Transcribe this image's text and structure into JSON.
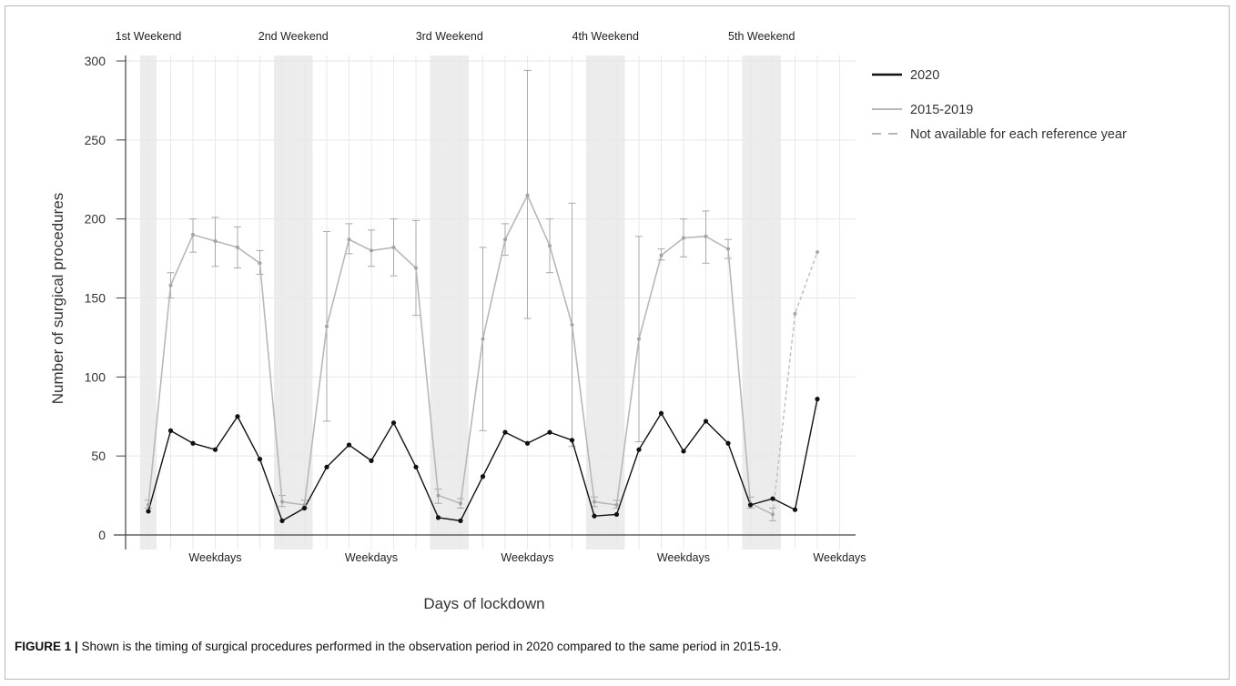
{
  "chart_data": {
    "type": "line",
    "xlabel": "Days of lockdown",
    "ylabel": "Number of surgical procedures",
    "ylim": [
      0,
      300
    ],
    "yticks": [
      0,
      50,
      100,
      150,
      200,
      250,
      300
    ],
    "grid": true,
    "legend_position": "right",
    "x_days": 30,
    "weekend_labels": [
      "1st Weekend",
      "2nd Weekend",
      "3rd Weekend",
      "4th Weekend",
      "5th Weekend"
    ],
    "weekend_days": [
      [
        1
      ],
      [
        7,
        8
      ],
      [
        14,
        15
      ],
      [
        21,
        22
      ],
      [
        28,
        29
      ]
    ],
    "weekday_labels": [
      "Weekdays",
      "Weekdays",
      "Weekdays",
      "Weekdays",
      "Weekdays"
    ],
    "weekday_label_days": [
      4,
      11,
      18,
      25,
      32
    ],
    "series": [
      {
        "name": "2020",
        "color": "#111111",
        "x": [
          1,
          2,
          3,
          4,
          5,
          6,
          7,
          8,
          9,
          10,
          11,
          12,
          13,
          14,
          15,
          16,
          17,
          18,
          19,
          20,
          21,
          22,
          23,
          24,
          25,
          26,
          27,
          28,
          29,
          30,
          31
        ],
        "values": [
          15,
          66,
          58,
          54,
          75,
          48,
          9,
          17,
          43,
          57,
          47,
          71,
          43,
          11,
          9,
          37,
          65,
          58,
          65,
          60,
          12,
          13,
          54,
          77,
          53,
          72,
          58,
          19,
          23,
          16,
          86
        ]
      },
      {
        "name": "2015-2019",
        "color": "#b8b8b8",
        "x": [
          1,
          2,
          3,
          4,
          5,
          6,
          7,
          8,
          9,
          10,
          11,
          12,
          13,
          14,
          15,
          16,
          17,
          18,
          19,
          20,
          21,
          22,
          23,
          24,
          25,
          26,
          27,
          28,
          29
        ],
        "values": [
          19,
          158,
          190,
          186,
          182,
          172,
          21,
          19,
          132,
          187,
          180,
          182,
          169,
          25,
          20,
          124,
          187,
          215,
          183,
          133,
          21,
          19,
          124,
          177,
          188,
          189,
          181,
          20,
          13
        ],
        "error_low": [
          17,
          150,
          179,
          170,
          169,
          165,
          18,
          17,
          72,
          178,
          170,
          164,
          139,
          20,
          17,
          66,
          177,
          137,
          166,
          56,
          18,
          17,
          59,
          174,
          176,
          172,
          175,
          17,
          9
        ],
        "error_high": [
          22,
          166,
          200,
          201,
          195,
          180,
          25,
          22,
          192,
          197,
          193,
          200,
          199,
          29,
          23,
          182,
          197,
          294,
          200,
          210,
          24,
          22,
          189,
          181,
          200,
          205,
          187,
          24,
          17
        ]
      },
      {
        "name": "Not available for each reference year",
        "color": "#b8b8b8",
        "dashed": true,
        "x": [
          29,
          30,
          31
        ],
        "values": [
          13,
          140,
          179
        ]
      }
    ]
  },
  "caption": {
    "label": "FIGURE 1 |",
    "text": " Shown is the timing of surgical procedures performed in the observation period in 2020 compared to the same period in 2015-19."
  }
}
